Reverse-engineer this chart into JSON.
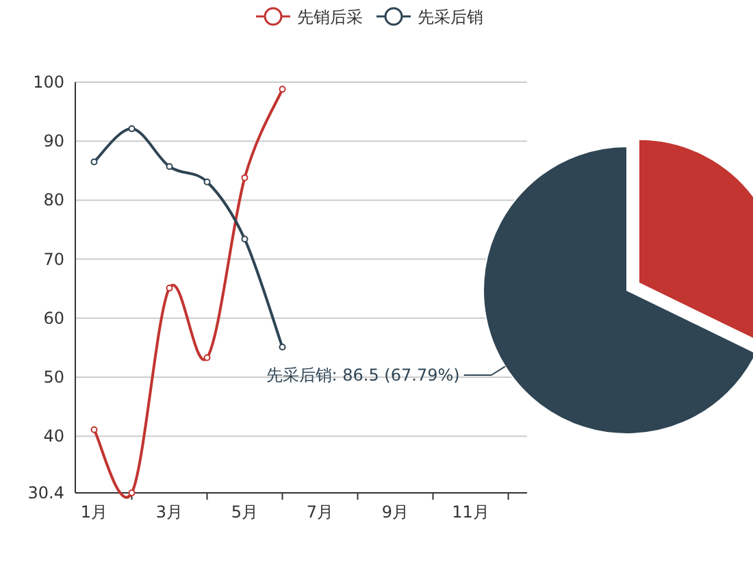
{
  "chart_data": [
    {
      "type": "line",
      "categories": [
        "1月",
        null,
        "3月",
        null,
        "5月",
        null,
        "7月",
        null,
        "9月",
        null,
        "11月",
        null
      ],
      "ylim": [
        30.4,
        100
      ],
      "yticks": [
        30.4,
        40,
        50,
        60,
        70,
        80,
        90,
        100
      ],
      "grid": "y",
      "legend": "top",
      "marker": "circle",
      "series": [
        {
          "name": "先销后采",
          "color": "#c23531",
          "values": [
            41.1,
            30.4,
            65.1,
            53.3,
            83.8,
            98.8,
            null,
            null,
            null,
            null,
            null,
            null
          ]
        },
        {
          "name": "先采后销",
          "color": "#2f4554",
          "values": [
            86.5,
            92.1,
            85.7,
            83.1,
            73.4,
            55.1,
            null,
            null,
            null,
            null,
            null,
            null
          ]
        }
      ]
    },
    {
      "type": "pie",
      "categories": [
        null,
        null
      ],
      "values": [
        41.1,
        86.5
      ],
      "colors": [
        "#c23531",
        "#2f4554"
      ],
      "value_labels": [
        null,
        "先采后销: 86.5 (67.79%)"
      ]
    }
  ]
}
